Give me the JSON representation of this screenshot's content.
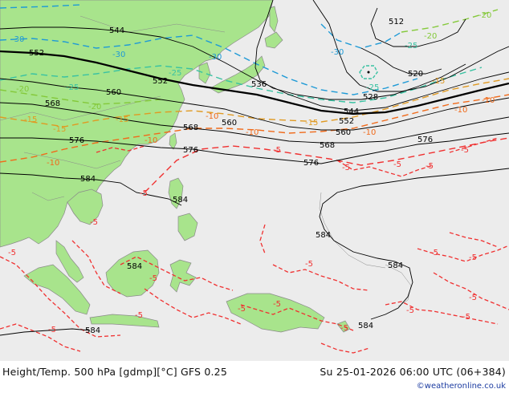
{
  "footer": {
    "title": "Height/Temp. 500 hPa [gdmp][°C] GFS 0.25",
    "date": "Su 25-01-2026 06:00 UTC (06+384)",
    "credit": "©weatheronline.co.uk"
  },
  "colors": {
    "ocean": "#ececec",
    "land": "#a8e48c",
    "land_border": "#8a8a8a",
    "height_contour": "#000000",
    "temp_cold": "#1e9ad6",
    "temp_mid": "#39c2a2",
    "temp_warm": "#84c93a",
    "temp_minus15": "#e09a22",
    "temp_minus10": "#f06a1a",
    "temp_minus5": "#f03030"
  },
  "height_labels": [
    "544",
    "552",
    "552",
    "560",
    "568",
    "576",
    "584",
    "584",
    "536",
    "512",
    "520",
    "528",
    "544",
    "552",
    "560",
    "560",
    "568",
    "568",
    "576",
    "576",
    "576",
    "584",
    "584",
    "584",
    "584",
    "584"
  ],
  "temp_labels": [
    "-30",
    "-30",
    "-30",
    "-30",
    "-25",
    "-25",
    "-25",
    "-25",
    "-20",
    "-20",
    "-20",
    "-20",
    "-15",
    "-15",
    "-15",
    "-15",
    "-15",
    "-10",
    "-10",
    "-10",
    "-10",
    "-10",
    "-10",
    "-10",
    "-5",
    "-5",
    "-5",
    "-5",
    "-5",
    "-5",
    "-5",
    "-5",
    "-5",
    "-5",
    "-5",
    "-5",
    "-5",
    "-5",
    "-5",
    "-5",
    "-5",
    "-5",
    "-5",
    "-5"
  ]
}
